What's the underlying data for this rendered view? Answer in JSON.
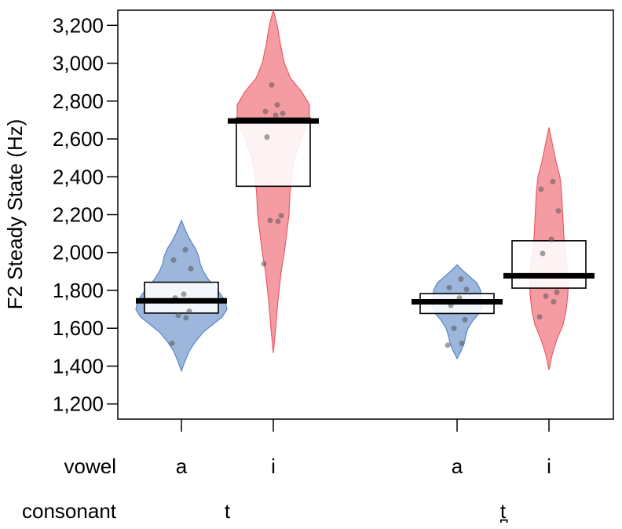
{
  "chart_data": {
    "type": "violin",
    "title": "",
    "ylabel": "F2 Steady State (Hz)",
    "ylim": [
      1120,
      3280
    ],
    "yticks": [
      1200,
      1400,
      1600,
      1800,
      2000,
      2200,
      2400,
      2600,
      2800,
      3000,
      3200
    ],
    "ytick_labels": [
      "1,200",
      "1,400",
      "1,600",
      "1,800",
      "2,000",
      "2,200",
      "2,400",
      "2,600",
      "2,800",
      "3,000",
      "3,200"
    ],
    "row_labels": {
      "vowel": "vowel",
      "consonant": "consonant"
    },
    "consonant_labels": [
      "t",
      "t̪"
    ],
    "colors": {
      "a": "#5a86c4",
      "i": "#ee5a65"
    },
    "groups": [
      {
        "vowel": "a",
        "consonant": "t",
        "mean": 1745,
        "box_low": 1680,
        "box_high": 1843,
        "density": [
          [
            1375,
            0
          ],
          [
            1420,
            4
          ],
          [
            1480,
            10
          ],
          [
            1530,
            18
          ],
          [
            1580,
            28
          ],
          [
            1620,
            40
          ],
          [
            1660,
            52
          ],
          [
            1700,
            58
          ],
          [
            1740,
            56
          ],
          [
            1780,
            50
          ],
          [
            1820,
            42
          ],
          [
            1860,
            34
          ],
          [
            1900,
            28
          ],
          [
            1940,
            24
          ],
          [
            1980,
            22
          ],
          [
            2020,
            18
          ],
          [
            2060,
            12
          ],
          [
            2100,
            7
          ],
          [
            2140,
            3
          ],
          [
            2170,
            0
          ]
        ],
        "points": [
          1520,
          1655,
          1668,
          1690,
          1760,
          1780,
          1915,
          1960,
          2015
        ]
      },
      {
        "vowel": "i",
        "consonant": "t",
        "mean": 2695,
        "box_low": 2350,
        "box_high": 2710,
        "density": [
          [
            1470,
            0
          ],
          [
            1600,
            3
          ],
          [
            1750,
            6
          ],
          [
            1900,
            10
          ],
          [
            2000,
            14
          ],
          [
            2100,
            17
          ],
          [
            2200,
            20
          ],
          [
            2300,
            21
          ],
          [
            2400,
            23
          ],
          [
            2500,
            27
          ],
          [
            2600,
            36
          ],
          [
            2700,
            46
          ],
          [
            2780,
            46
          ],
          [
            2850,
            36
          ],
          [
            2920,
            22
          ],
          [
            3000,
            14
          ],
          [
            3100,
            9
          ],
          [
            3200,
            5
          ],
          [
            3280,
            0
          ]
        ],
        "points": [
          1940,
          2165,
          2170,
          2195,
          2610,
          2725,
          2735,
          2745,
          2780,
          2885
        ]
      },
      {
        "vowel": "a",
        "consonant": "t̪",
        "mean": 1740,
        "box_low": 1678,
        "box_high": 1783,
        "density": [
          [
            1440,
            0
          ],
          [
            1480,
            5
          ],
          [
            1520,
            9
          ],
          [
            1560,
            11
          ],
          [
            1600,
            14
          ],
          [
            1640,
            20
          ],
          [
            1680,
            28
          ],
          [
            1720,
            32
          ],
          [
            1760,
            30
          ],
          [
            1800,
            30
          ],
          [
            1840,
            25
          ],
          [
            1880,
            14
          ],
          [
            1910,
            6
          ],
          [
            1935,
            0
          ]
        ],
        "points": [
          1510,
          1520,
          1600,
          1645,
          1720,
          1760,
          1805,
          1815,
          1860
        ]
      },
      {
        "vowel": "i",
        "consonant": "t̪",
        "mean": 1877,
        "box_low": 1812,
        "box_high": 2062,
        "density": [
          [
            1380,
            0
          ],
          [
            1460,
            4
          ],
          [
            1540,
            10
          ],
          [
            1620,
            18
          ],
          [
            1700,
            22
          ],
          [
            1780,
            24
          ],
          [
            1860,
            25
          ],
          [
            1940,
            23
          ],
          [
            2000,
            21
          ],
          [
            2080,
            19
          ],
          [
            2160,
            18
          ],
          [
            2240,
            17
          ],
          [
            2320,
            16
          ],
          [
            2400,
            14
          ],
          [
            2480,
            9
          ],
          [
            2560,
            5
          ],
          [
            2620,
            2
          ],
          [
            2660,
            0
          ]
        ],
        "points": [
          1660,
          1740,
          1770,
          1790,
          1995,
          2070,
          2220,
          2335,
          2375
        ]
      }
    ]
  }
}
